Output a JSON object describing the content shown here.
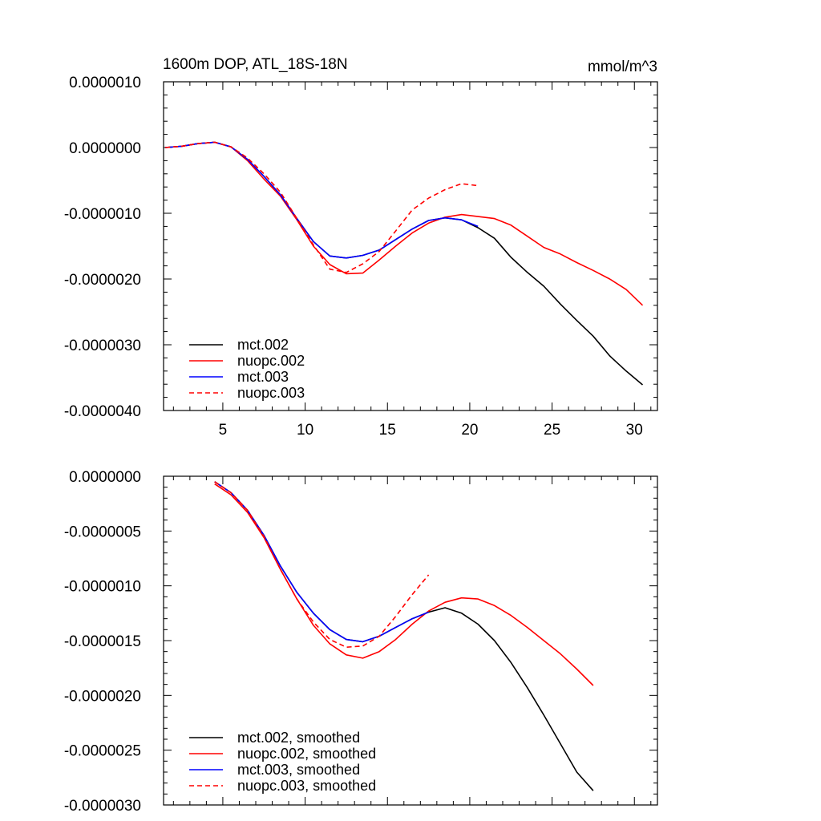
{
  "chart_data": [
    {
      "type": "line",
      "title": "1600m DOP, ATL_18S-18N",
      "units": "mmol/m^3",
      "xlim": [
        1.4,
        31.4
      ],
      "ylim": [
        -4e-06,
        1e-06
      ],
      "xticks": [
        5,
        10,
        15,
        20,
        25,
        30
      ],
      "xtick_labels": [
        "5",
        "10",
        "15",
        "20",
        "25",
        "30"
      ],
      "yticks": [
        1e-06,
        0,
        -1e-06,
        -2e-06,
        -3e-06,
        -4e-06
      ],
      "ytick_labels": [
        "0.0000010",
        "0.0000000",
        "-0.0000010",
        "-0.0000020",
        "-0.0000030",
        "-0.0000040"
      ],
      "legend_position": "bottom-left",
      "series": [
        {
          "name": "mct.002",
          "color": "#000000",
          "dash": false,
          "x": [
            1.5,
            2.5,
            3.5,
            4.5,
            5.5,
            6.5,
            7.5,
            8.5,
            9.5,
            10.5,
            11.5,
            12.5,
            13.5,
            14.5,
            15.5,
            16.5,
            17.5,
            18.5,
            19.5,
            20.5,
            21.5,
            22.5,
            23.5,
            24.5,
            25.5,
            26.5,
            27.5,
            28.5,
            29.5,
            30.5
          ],
          "y": [
            0,
            2e-08,
            6e-08,
            8e-08,
            1e-08,
            -1.8e-07,
            -4.4e-07,
            -7.2e-07,
            -1.08e-06,
            -1.43e-06,
            -1.65e-06,
            -1.68e-06,
            -1.64e-06,
            -1.56e-06,
            -1.4e-06,
            -1.24e-06,
            -1.11e-06,
            -1.07e-06,
            -1.1e-06,
            -1.22e-06,
            -1.38e-06,
            -1.67e-06,
            -1.9e-06,
            -2.11e-06,
            -2.38e-06,
            -2.63e-06,
            -2.87e-06,
            -3.17e-06,
            -3.4e-06,
            -3.61e-06
          ]
        },
        {
          "name": "nuopc.002",
          "color": "#ff0000",
          "dash": false,
          "x": [
            1.5,
            2.5,
            3.5,
            4.5,
            5.5,
            6.5,
            7.5,
            8.5,
            9.5,
            10.5,
            11.5,
            12.5,
            13.5,
            14.5,
            15.5,
            16.5,
            17.5,
            18.5,
            19.5,
            20.5,
            21.5,
            22.5,
            23.5,
            24.5,
            25.5,
            26.5,
            27.5,
            28.5,
            29.5,
            30.5
          ],
          "y": [
            0,
            2e-08,
            6e-08,
            8e-08,
            1e-08,
            -2e-07,
            -4.8e-07,
            -7.4e-07,
            -1.1e-06,
            -1.5e-06,
            -1.78e-06,
            -1.92e-06,
            -1.91e-06,
            -1.71e-06,
            -1.5e-06,
            -1.3e-06,
            -1.15e-06,
            -1.06e-06,
            -1.02e-06,
            -1.05e-06,
            -1.08e-06,
            -1.18e-06,
            -1.35e-06,
            -1.52e-06,
            -1.62e-06,
            -1.75e-06,
            -1.87e-06,
            -2e-06,
            -2.16e-06,
            -2.4e-06
          ]
        },
        {
          "name": "mct.003",
          "color": "#0000ff",
          "dash": false,
          "x": [
            1.5,
            2.5,
            3.5,
            4.5,
            5.5,
            6.5,
            7.5,
            8.5,
            9.5,
            10.5,
            11.5,
            12.5,
            13.5,
            14.5,
            15.5,
            16.5,
            17.5,
            18.5,
            19.5,
            20.5
          ],
          "y": [
            0,
            2e-08,
            6e-08,
            8e-08,
            1e-08,
            -1.8e-07,
            -4.4e-07,
            -7.2e-07,
            -1.08e-06,
            -1.43e-06,
            -1.65e-06,
            -1.68e-06,
            -1.64e-06,
            -1.56e-06,
            -1.4e-06,
            -1.24e-06,
            -1.11e-06,
            -1.07e-06,
            -1.1e-06,
            -1.2e-06
          ]
        },
        {
          "name": "nuopc.003",
          "color": "#ff0000",
          "dash": true,
          "x": [
            1.5,
            2.5,
            3.5,
            4.5,
            5.5,
            6.5,
            7.5,
            8.5,
            9.5,
            10.5,
            11.5,
            12.5,
            13.5,
            14.5,
            15.5,
            16.5,
            17.5,
            18.5,
            19.5,
            20.5
          ],
          "y": [
            0,
            2e-08,
            6e-08,
            8e-08,
            1e-08,
            -1.6e-07,
            -4e-07,
            -6.8e-07,
            -1.08e-06,
            -1.48e-06,
            -1.85e-06,
            -1.9e-06,
            -1.77e-06,
            -1.58e-06,
            -1.27e-06,
            -9.5e-07,
            -7.7e-07,
            -6.4e-07,
            -5.5e-07,
            -5.8e-07
          ]
        }
      ]
    },
    {
      "type": "line",
      "xlim": [
        1.4,
        31.4
      ],
      "ylim": [
        -3e-06,
        0
      ],
      "xticks": [
        5,
        10,
        15,
        20,
        25,
        30
      ],
      "xtick_labels": [],
      "yticks": [
        0,
        -5e-07,
        -1e-06,
        -1.5e-06,
        -2e-06,
        -2.5e-06,
        -3e-06
      ],
      "ytick_labels": [
        "0.0000000",
        "-0.0000005",
        "-0.0000010",
        "-0.0000015",
        "-0.0000020",
        "-0.0000025",
        "-0.0000030"
      ],
      "legend_position": "bottom-left",
      "series": [
        {
          "name": "mct.002, smoothed",
          "color": "#000000",
          "dash": false,
          "x": [
            4.5,
            5.5,
            6.5,
            7.5,
            8.5,
            9.5,
            10.5,
            11.5,
            12.5,
            13.5,
            14.5,
            15.5,
            16.5,
            17.5,
            18.5,
            19.5,
            20.5,
            21.5,
            22.5,
            23.5,
            24.5,
            25.5,
            26.5,
            27.5
          ],
          "y": [
            -5e-08,
            -1.5e-07,
            -3.1e-07,
            -5.4e-07,
            -8.2e-07,
            -1.06e-06,
            -1.25e-06,
            -1.4e-06,
            -1.49e-06,
            -1.51e-06,
            -1.46e-06,
            -1.38e-06,
            -1.3e-06,
            -1.24e-06,
            -1.2e-06,
            -1.25e-06,
            -1.35e-06,
            -1.5e-06,
            -1.7e-06,
            -1.93e-06,
            -2.18e-06,
            -2.44e-06,
            -2.7e-06,
            -2.87e-06
          ]
        },
        {
          "name": "nuopc.002, smoothed",
          "color": "#ff0000",
          "dash": false,
          "x": [
            4.5,
            5.5,
            6.5,
            7.5,
            8.5,
            9.5,
            10.5,
            11.5,
            12.5,
            13.5,
            14.5,
            15.5,
            16.5,
            17.5,
            18.5,
            19.5,
            20.5,
            21.5,
            22.5,
            23.5,
            24.5,
            25.5,
            26.5,
            27.5
          ],
          "y": [
            -7e-08,
            -1.7e-07,
            -3.3e-07,
            -5.6e-07,
            -8.5e-07,
            -1.12e-06,
            -1.36e-06,
            -1.53e-06,
            -1.63e-06,
            -1.66e-06,
            -1.6e-06,
            -1.49e-06,
            -1.35e-06,
            -1.23e-06,
            -1.15e-06,
            -1.11e-06,
            -1.12e-06,
            -1.18e-06,
            -1.27e-06,
            -1.38e-06,
            -1.5e-06,
            -1.62e-06,
            -1.76e-06,
            -1.91e-06
          ]
        },
        {
          "name": "mct.003, smoothed",
          "color": "#0000ff",
          "dash": false,
          "x": [
            4.5,
            5.5,
            6.5,
            7.5,
            8.5,
            9.5,
            10.5,
            11.5,
            12.5,
            13.5,
            14.5,
            15.5,
            16.5,
            17.5
          ],
          "y": [
            -5e-08,
            -1.5e-07,
            -3.1e-07,
            -5.4e-07,
            -8.2e-07,
            -1.06e-06,
            -1.25e-06,
            -1.4e-06,
            -1.49e-06,
            -1.51e-06,
            -1.46e-06,
            -1.38e-06,
            -1.3e-06,
            -1.24e-06
          ]
        },
        {
          "name": "nuopc.003, smoothed",
          "color": "#ff0000",
          "dash": true,
          "x": [
            4.5,
            5.5,
            6.5,
            7.5,
            8.5,
            9.5,
            10.5,
            11.5,
            12.5,
            13.5,
            14.5,
            15.5,
            16.5,
            17.5
          ],
          "y": [
            -5e-08,
            -1.5e-07,
            -3.1e-07,
            -5.5e-07,
            -8.5e-07,
            -1.12e-06,
            -1.33e-06,
            -1.49e-06,
            -1.56e-06,
            -1.55e-06,
            -1.46e-06,
            -1.28e-06,
            -1.08e-06,
            -9e-07
          ]
        }
      ]
    }
  ]
}
